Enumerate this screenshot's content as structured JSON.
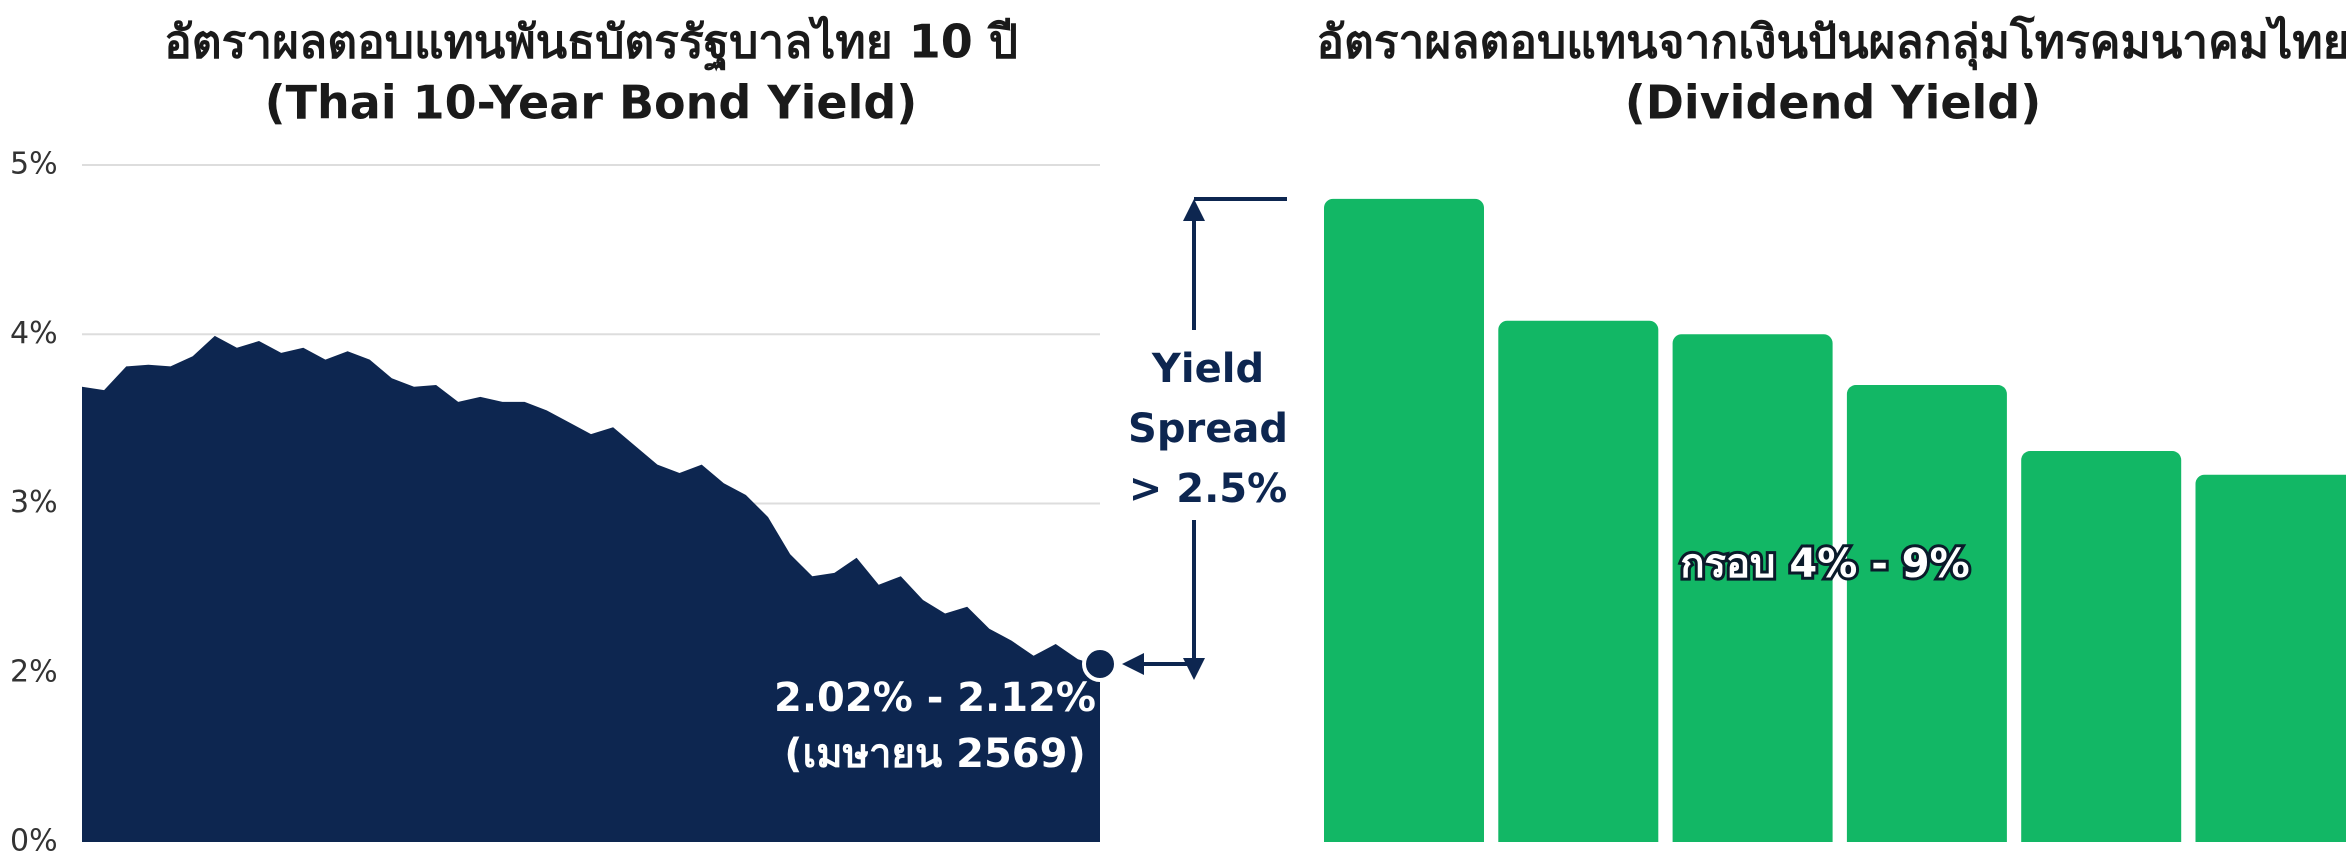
{
  "chart_data": [
    {
      "type": "area",
      "title": "อัตราผลตอบแทนพันธบัตรรัฐบาลไทย 10 ปี",
      "subtitle": "(Thai 10-Year Bond Yield)",
      "color": "#0d2650",
      "grid": true,
      "ylim": [
        1,
        5
      ],
      "yticks": [
        {
          "value": 2,
          "label": "2%"
        },
        {
          "value": 3,
          "label": "3%"
        },
        {
          "value": 4,
          "label": "4%"
        },
        {
          "value": 5,
          "label": "5%"
        }
      ],
      "baseline_label": "0%",
      "values": [
        3.69,
        3.67,
        3.81,
        3.82,
        3.81,
        3.87,
        3.99,
        3.92,
        3.96,
        3.89,
        3.92,
        3.85,
        3.9,
        3.85,
        3.74,
        3.69,
        3.7,
        3.6,
        3.63,
        3.6,
        3.6,
        3.55,
        3.48,
        3.41,
        3.45,
        3.34,
        3.23,
        3.18,
        3.23,
        3.12,
        3.05,
        2.92,
        2.7,
        2.57,
        2.59,
        2.68,
        2.52,
        2.57,
        2.43,
        2.35,
        2.39,
        2.26,
        2.19,
        2.1,
        2.17,
        2.08,
        2.04
      ],
      "annotations": [
        "2.02% - 2.12%",
        "(เมษายน 2569)"
      ],
      "spread_label": [
        "Yield",
        "Spread",
        "> 2.5%"
      ]
    },
    {
      "type": "bar",
      "title": "อัตราผลตอบแทนจากเงินปันผลกลุ่มโทรคมนาคมไทย",
      "subtitle": "(Dividend Yield)",
      "color": "#12b765",
      "ylim": [
        1,
        5
      ],
      "values": [
        4.8,
        4.08,
        4.0,
        3.7,
        3.31,
        3.17
      ],
      "annotation": "กรอบ 4% - 9%"
    }
  ]
}
